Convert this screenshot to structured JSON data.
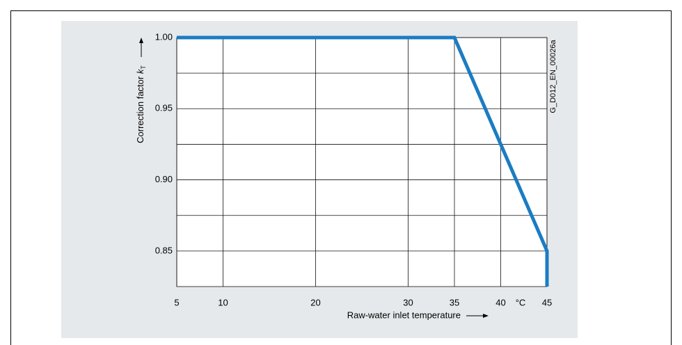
{
  "chart_data": {
    "type": "line",
    "xlabel": "Raw-water inlet temperature",
    "xunit": "°C",
    "ylabel": "Correction factor",
    "ylabel_symbol": "k",
    "ylabel_subscript": "T",
    "figure_id": "G_D012_EN_00026a",
    "xlim": [
      5,
      45
    ],
    "ylim": [
      0.825,
      1.0
    ],
    "xticks": [
      5,
      10,
      20,
      30,
      35,
      40,
      45
    ],
    "yticks": [
      {
        "value": 1.0,
        "label": "1.00"
      },
      {
        "value": 0.95,
        "label": "0.95"
      },
      {
        "value": 0.9,
        "label": "0.90"
      },
      {
        "value": 0.85,
        "label": "0.85"
      }
    ],
    "yminor": [
      0.975,
      0.925,
      0.875
    ],
    "grid": true,
    "series": [
      {
        "color": "#1b7cc3",
        "x": [
          5,
          35,
          40,
          45,
          45
        ],
        "values": [
          1.0,
          1.0,
          0.925,
          0.85,
          0.825
        ]
      }
    ]
  }
}
